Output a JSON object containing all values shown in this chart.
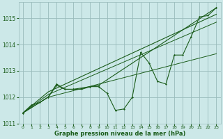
{
  "background_color": "#cce8e8",
  "plot_bg_color": "#cce8e8",
  "grid_color": "#99bbbb",
  "line_color": "#1a5c1a",
  "text_color": "#1a5c1a",
  "xlabel": "Graphe pression niveau de la mer (hPa)",
  "xlim": [
    -0.5,
    23.5
  ],
  "ylim": [
    1011.0,
    1015.6
  ],
  "yticks": [
    1011,
    1012,
    1013,
    1014,
    1015
  ],
  "xticks": [
    0,
    1,
    2,
    3,
    4,
    5,
    6,
    7,
    8,
    9,
    10,
    11,
    12,
    13,
    14,
    15,
    16,
    17,
    18,
    19,
    20,
    21,
    22,
    23
  ],
  "main_x": [
    0,
    1,
    2,
    3,
    4,
    5,
    6,
    7,
    8,
    9,
    10,
    11,
    12,
    13,
    14,
    15,
    16,
    17,
    18,
    19,
    20,
    21,
    22,
    23
  ],
  "main_y": [
    1011.4,
    1011.7,
    1011.8,
    1012.0,
    1012.5,
    1012.3,
    1012.3,
    1012.35,
    1012.4,
    1012.4,
    1012.15,
    1011.5,
    1011.55,
    1012.0,
    1013.7,
    1013.3,
    1012.6,
    1012.5,
    1013.6,
    1013.6,
    1014.3,
    1015.05,
    1015.1,
    1015.4
  ],
  "line2_x": [
    0,
    3,
    4,
    5,
    6,
    7,
    8,
    9,
    23
  ],
  "line2_y": [
    1011.4,
    1012.0,
    1012.45,
    1012.3,
    1012.3,
    1012.3,
    1012.4,
    1012.45,
    1015.4
  ],
  "line3_x": [
    0,
    3,
    23
  ],
  "line3_y": [
    1011.4,
    1012.2,
    1015.15
  ],
  "line4_x": [
    0,
    3,
    23
  ],
  "line4_y": [
    1011.4,
    1012.1,
    1014.85
  ],
  "line5_x": [
    0,
    3,
    23
  ],
  "line5_y": [
    1011.4,
    1012.0,
    1013.65
  ]
}
